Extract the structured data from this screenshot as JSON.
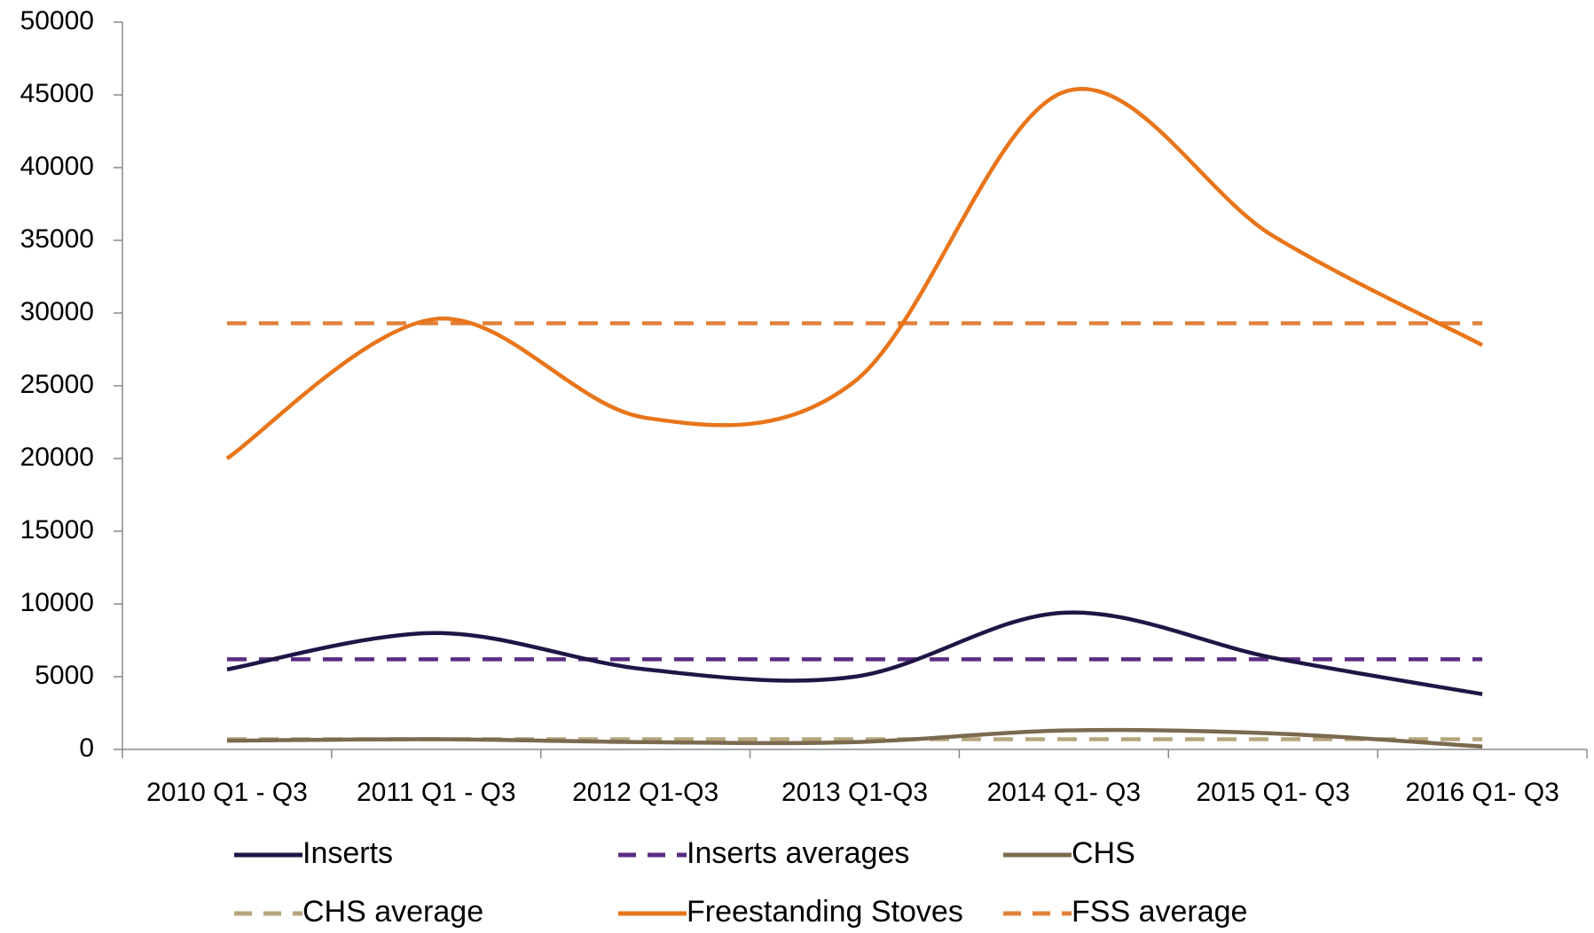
{
  "chart_data": {
    "type": "line",
    "categories": [
      "2010 Q1 - Q3",
      "2011 Q1 - Q3",
      "2012 Q1-Q3",
      "2013 Q1-Q3",
      "2014 Q1- Q3",
      "2015 Q1- Q3",
      "2016 Q1- Q3"
    ],
    "series": [
      {
        "name": "Inserts",
        "color": "#1f1646",
        "dashed": false,
        "values": [
          5500,
          8000,
          5500,
          5000,
          9400,
          6300,
          3800
        ]
      },
      {
        "name": "Inserts averages",
        "color": "#5b2c83",
        "dashed": true,
        "values": [
          6200,
          6200,
          6200,
          6200,
          6200,
          6200,
          6200
        ]
      },
      {
        "name": "CHS",
        "color": "#7a6a4f",
        "dashed": false,
        "values": [
          600,
          700,
          500,
          500,
          1300,
          1100,
          200
        ]
      },
      {
        "name": "CHS average",
        "color": "#b5a67e",
        "dashed": true,
        "values": [
          700,
          700,
          700,
          700,
          700,
          700,
          700
        ]
      },
      {
        "name": "Freestanding Stoves",
        "color": "#e8751a",
        "dashed": false,
        "values": [
          20000,
          29600,
          22800,
          25300,
          45200,
          35300,
          27800
        ]
      },
      {
        "name": "FSS average",
        "color": "#e0823a",
        "dashed": true,
        "values": [
          29300,
          29300,
          29300,
          29300,
          29300,
          29300,
          29300
        ]
      }
    ],
    "ylim": [
      0,
      50000
    ],
    "yticks": [
      0,
      5000,
      10000,
      15000,
      20000,
      25000,
      30000,
      35000,
      40000,
      45000,
      50000
    ],
    "grid": false,
    "legend": "bottom"
  }
}
